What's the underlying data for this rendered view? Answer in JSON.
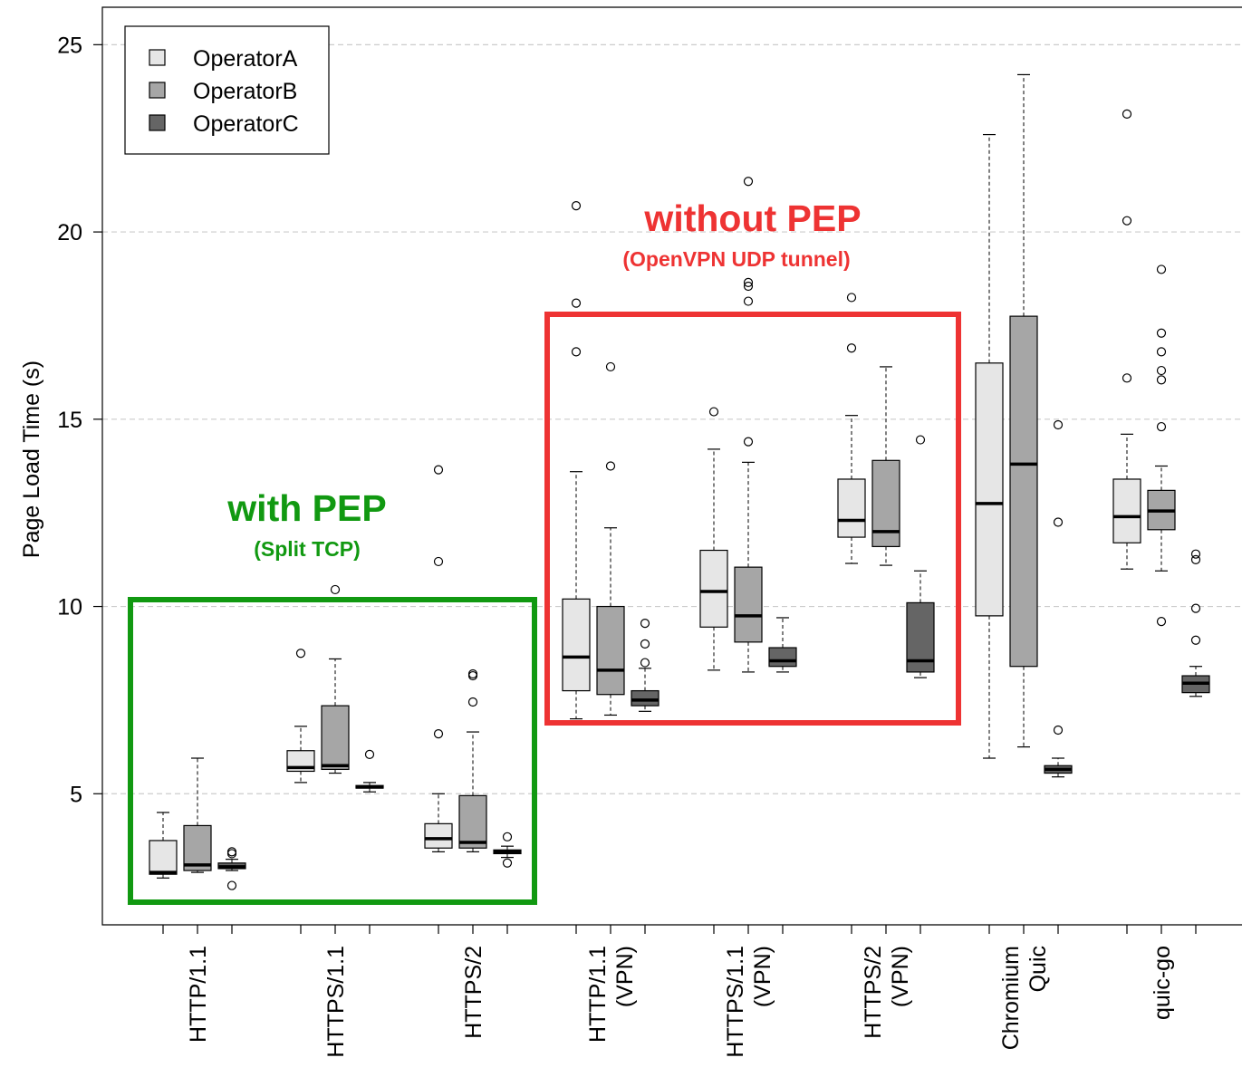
{
  "chart_data": {
    "type": "box",
    "ylabel": "Page Load Time (s)",
    "xlabel": "",
    "ylim": [
      1.5,
      26
    ],
    "yticks": [
      "5",
      "10",
      "15",
      "20",
      "25"
    ],
    "grid": "horizontal dashed",
    "legend": {
      "placement": "top-left",
      "entries": [
        "OperatorA",
        "OperatorB",
        "OperatorC"
      ]
    },
    "series_colors": {
      "OperatorA": "#e6e6e6",
      "OperatorB": "#a6a6a6",
      "OperatorC": "#656565"
    },
    "categories": [
      {
        "label": [
          "HTTP/1.1"
        ]
      },
      {
        "label": [
          "HTTPS/1.1"
        ]
      },
      {
        "label": [
          "HTTPS/2"
        ]
      },
      {
        "label": [
          "HTTP/1.1",
          "(VPN)"
        ]
      },
      {
        "label": [
          "HTTPS/1.1",
          "(VPN)"
        ]
      },
      {
        "label": [
          "HTTPS/2",
          "(VPN)"
        ]
      },
      {
        "label": [
          "Chromium",
          "Quic"
        ]
      },
      {
        "label": [
          "quic-go"
        ]
      }
    ],
    "boxes": [
      {
        "category": 0,
        "series": "OperatorA",
        "whisker_low": 2.75,
        "q1": 2.85,
        "median": 2.9,
        "q3": 3.75,
        "whisker_high": 4.5,
        "outliers": []
      },
      {
        "category": 0,
        "series": "OperatorB",
        "whisker_low": 2.9,
        "q1": 2.95,
        "median": 3.1,
        "q3": 4.15,
        "whisker_high": 5.95,
        "outliers": []
      },
      {
        "category": 0,
        "series": "OperatorC",
        "whisker_low": 2.95,
        "q1": 3.0,
        "median": 3.05,
        "q3": 3.15,
        "whisker_high": 3.25,
        "outliers": [
          3.45,
          3.4,
          2.55
        ]
      },
      {
        "category": 1,
        "series": "OperatorA",
        "whisker_low": 5.3,
        "q1": 5.6,
        "median": 5.7,
        "q3": 6.15,
        "whisker_high": 6.8,
        "outliers": [
          8.75
        ]
      },
      {
        "category": 1,
        "series": "OperatorB",
        "whisker_low": 5.55,
        "q1": 5.65,
        "median": 5.75,
        "q3": 7.35,
        "whisker_high": 8.6,
        "outliers": [
          10.45
        ]
      },
      {
        "category": 1,
        "series": "OperatorC",
        "whisker_low": 5.05,
        "q1": 5.15,
        "median": 5.18,
        "q3": 5.22,
        "whisker_high": 5.3,
        "outliers": [
          6.05
        ]
      },
      {
        "category": 2,
        "series": "OperatorA",
        "whisker_low": 3.45,
        "q1": 3.55,
        "median": 3.8,
        "q3": 4.2,
        "whisker_high": 5.0,
        "outliers": [
          6.6,
          11.2,
          13.65
        ]
      },
      {
        "category": 2,
        "series": "OperatorB",
        "whisker_low": 3.45,
        "q1": 3.55,
        "median": 3.7,
        "q3": 4.95,
        "whisker_high": 6.65,
        "outliers": [
          7.45,
          8.15,
          8.2
        ]
      },
      {
        "category": 2,
        "series": "OperatorC",
        "whisker_low": 3.3,
        "q1": 3.4,
        "median": 3.45,
        "q3": 3.5,
        "whisker_high": 3.6,
        "outliers": [
          3.85,
          3.15
        ]
      },
      {
        "category": 3,
        "series": "OperatorA",
        "whisker_low": 7.0,
        "q1": 7.75,
        "median": 8.65,
        "q3": 10.2,
        "whisker_high": 13.6,
        "outliers": [
          16.8,
          18.1,
          20.7
        ]
      },
      {
        "category": 3,
        "series": "OperatorB",
        "whisker_low": 7.1,
        "q1": 7.65,
        "median": 8.3,
        "q3": 10.0,
        "whisker_high": 12.1,
        "outliers": [
          13.75,
          16.4
        ]
      },
      {
        "category": 3,
        "series": "OperatorC",
        "whisker_low": 7.2,
        "q1": 7.35,
        "median": 7.5,
        "q3": 7.75,
        "whisker_high": 8.35,
        "outliers": [
          8.5,
          9.0,
          9.55
        ]
      },
      {
        "category": 4,
        "series": "OperatorA",
        "whisker_low": 8.3,
        "q1": 9.45,
        "median": 10.4,
        "q3": 11.5,
        "whisker_high": 14.2,
        "outliers": [
          15.2
        ]
      },
      {
        "category": 4,
        "series": "OperatorB",
        "whisker_low": 8.25,
        "q1": 9.05,
        "median": 9.75,
        "q3": 11.05,
        "whisker_high": 13.85,
        "outliers": [
          14.4,
          18.15,
          18.55,
          18.65,
          21.35
        ]
      },
      {
        "category": 4,
        "series": "OperatorC",
        "whisker_low": 8.25,
        "q1": 8.4,
        "median": 8.55,
        "q3": 8.9,
        "whisker_high": 9.7,
        "outliers": []
      },
      {
        "category": 5,
        "series": "OperatorA",
        "whisker_low": 11.15,
        "q1": 11.85,
        "median": 12.3,
        "q3": 13.4,
        "whisker_high": 15.1,
        "outliers": [
          16.9,
          18.25
        ]
      },
      {
        "category": 5,
        "series": "OperatorB",
        "whisker_low": 11.1,
        "q1": 11.6,
        "median": 12.0,
        "q3": 13.9,
        "whisker_high": 16.4,
        "outliers": []
      },
      {
        "category": 5,
        "series": "OperatorC",
        "whisker_low": 8.1,
        "q1": 8.25,
        "median": 8.55,
        "q3": 10.1,
        "whisker_high": 10.95,
        "outliers": [
          14.45
        ]
      },
      {
        "category": 6,
        "series": "OperatorA",
        "whisker_low": 5.95,
        "q1": 9.75,
        "median": 12.75,
        "q3": 16.5,
        "whisker_high": 22.6,
        "outliers": []
      },
      {
        "category": 6,
        "series": "OperatorB",
        "whisker_low": 6.25,
        "q1": 8.4,
        "median": 13.8,
        "q3": 17.75,
        "whisker_high": 24.2,
        "outliers": []
      },
      {
        "category": 6,
        "series": "OperatorC",
        "whisker_low": 5.45,
        "q1": 5.55,
        "median": 5.65,
        "q3": 5.75,
        "whisker_high": 5.95,
        "outliers": [
          6.7,
          12.25,
          14.85
        ]
      },
      {
        "category": 7,
        "series": "OperatorA",
        "whisker_low": 11.0,
        "q1": 11.7,
        "median": 12.4,
        "q3": 13.4,
        "whisker_high": 14.6,
        "outliers": [
          16.1,
          20.3,
          23.15
        ]
      },
      {
        "category": 7,
        "series": "OperatorB",
        "whisker_low": 10.95,
        "q1": 12.05,
        "median": 12.55,
        "q3": 13.1,
        "whisker_high": 13.75,
        "outliers": [
          9.6,
          14.8,
          16.05,
          16.3,
          16.8,
          17.3,
          19.0
        ]
      },
      {
        "category": 7,
        "series": "OperatorC",
        "whisker_low": 7.6,
        "q1": 7.7,
        "median": 7.95,
        "q3": 8.15,
        "whisker_high": 8.4,
        "outliers": [
          9.1,
          9.95,
          11.25,
          11.4
        ]
      }
    ],
    "annotations": [
      {
        "title": "with PEP",
        "subtitle": "(Split TCP)",
        "color": "#119911"
      },
      {
        "title": "without PEP",
        "subtitle": "(OpenVPN UDP tunnel)",
        "color": "#ee3333"
      }
    ]
  }
}
